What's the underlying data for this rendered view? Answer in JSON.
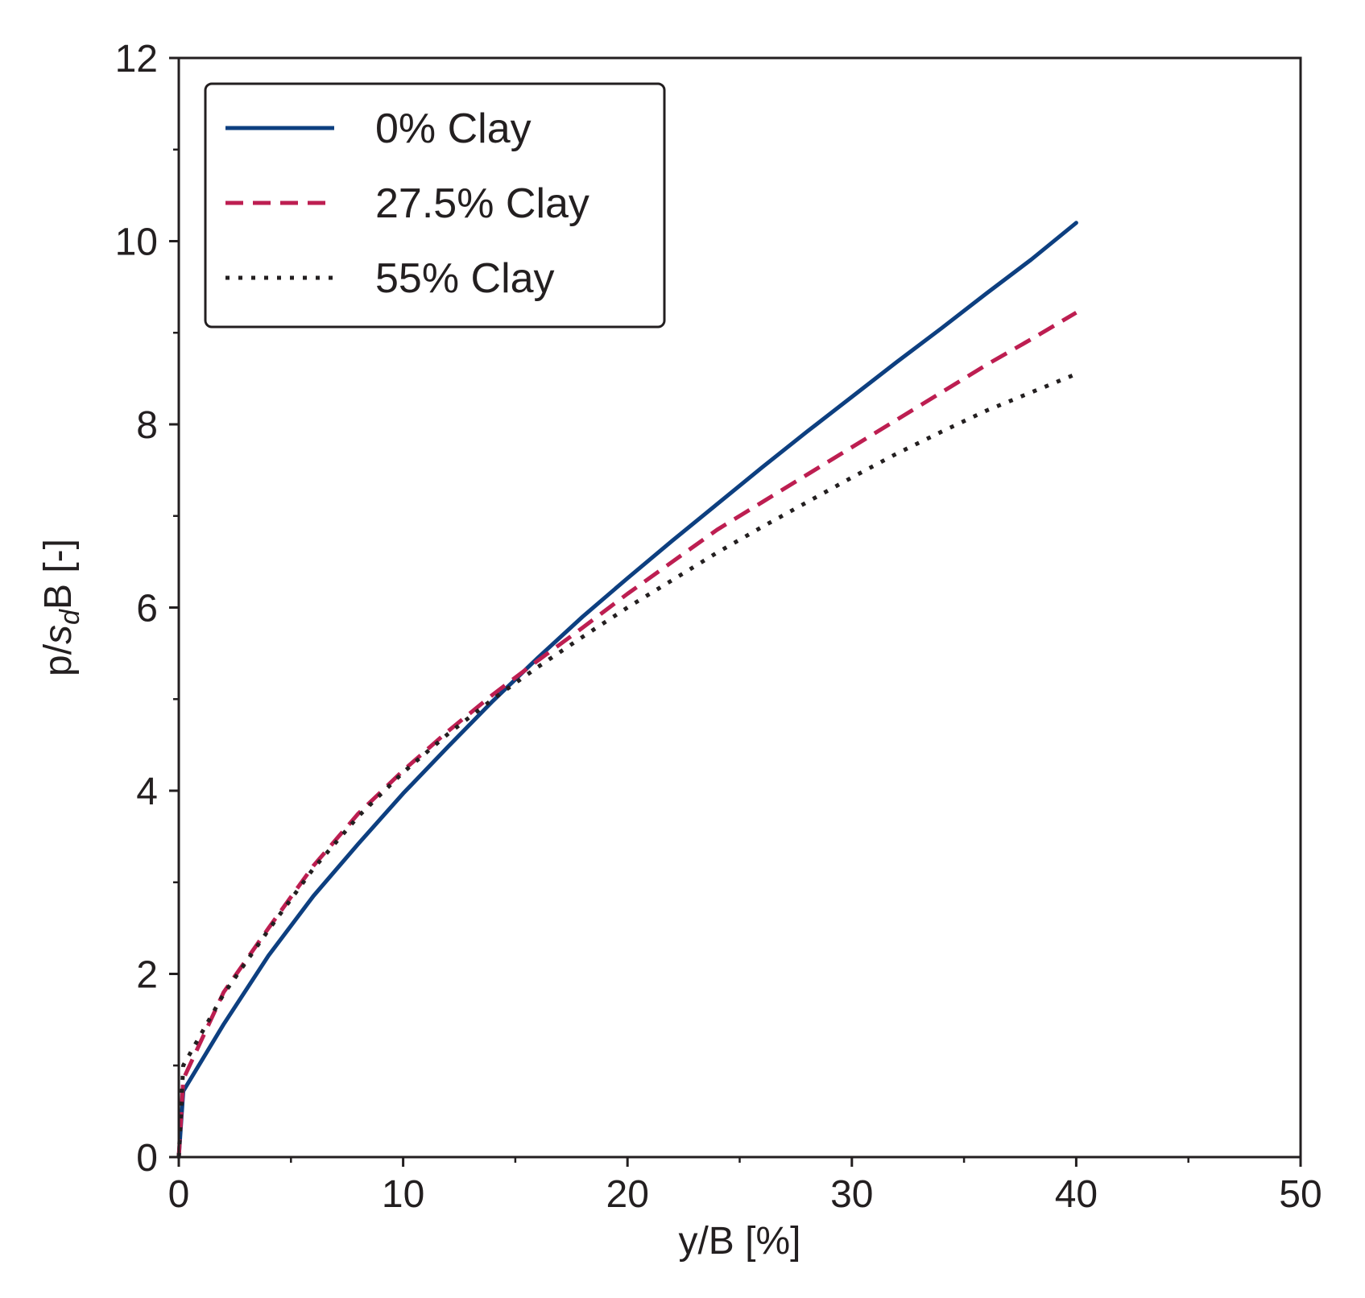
{
  "chart_data": {
    "type": "line",
    "title": "",
    "xlabel": "y/B [%]",
    "ylabel": {
      "prefix": "p/",
      "italic": "s",
      "subscript": "d",
      "suffix": "B [-]"
    },
    "xlim": [
      0,
      50
    ],
    "ylim": [
      0,
      12
    ],
    "xticks": [
      0,
      10,
      20,
      30,
      40,
      50
    ],
    "yticks": [
      0,
      2,
      4,
      6,
      8,
      10,
      12
    ],
    "xtick_labels": [
      "0",
      "10",
      "20",
      "30",
      "40",
      "50"
    ],
    "ytick_labels": [
      "0",
      "2",
      "4",
      "6",
      "8",
      "10",
      "12"
    ],
    "grid": false,
    "legend_position": "top-left",
    "series": [
      {
        "name": "0% Clay",
        "style": "solid",
        "color": "#0d3f80",
        "x": [
          0,
          0.2,
          2,
          4,
          6,
          8,
          10,
          12,
          14,
          16,
          18,
          20,
          22,
          24,
          26,
          28,
          30,
          32,
          34,
          36,
          38,
          40
        ],
        "y": [
          0,
          0.72,
          1.45,
          2.2,
          2.85,
          3.42,
          3.97,
          4.48,
          4.98,
          5.45,
          5.9,
          6.32,
          6.73,
          7.13,
          7.53,
          7.92,
          8.3,
          8.68,
          9.05,
          9.43,
          9.8,
          10.2
        ]
      },
      {
        "name": "27.5% Clay",
        "style": "dashed",
        "color": "#bd1e51",
        "x": [
          0,
          0.2,
          2,
          4,
          6,
          8,
          10,
          12,
          14,
          16,
          18,
          20,
          22,
          24,
          26,
          28,
          30,
          32,
          34,
          36,
          38,
          40
        ],
        "y": [
          0,
          0.85,
          1.8,
          2.5,
          3.18,
          3.75,
          4.22,
          4.65,
          5.05,
          5.42,
          5.78,
          6.15,
          6.5,
          6.85,
          7.15,
          7.45,
          7.75,
          8.05,
          8.35,
          8.65,
          8.93,
          9.22
        ]
      },
      {
        "name": "55% Clay",
        "style": "dotted",
        "color": "#231f20",
        "x": [
          0,
          0.2,
          2,
          4,
          6,
          8,
          10,
          12,
          14,
          16,
          18,
          20,
          22,
          24,
          26,
          28,
          30,
          32,
          34,
          36,
          38,
          40
        ],
        "y": [
          0,
          1.0,
          1.78,
          2.48,
          3.15,
          3.72,
          4.2,
          4.62,
          5.0,
          5.35,
          5.68,
          6.0,
          6.3,
          6.6,
          6.88,
          7.15,
          7.42,
          7.68,
          7.92,
          8.15,
          8.35,
          8.55
        ]
      }
    ]
  }
}
